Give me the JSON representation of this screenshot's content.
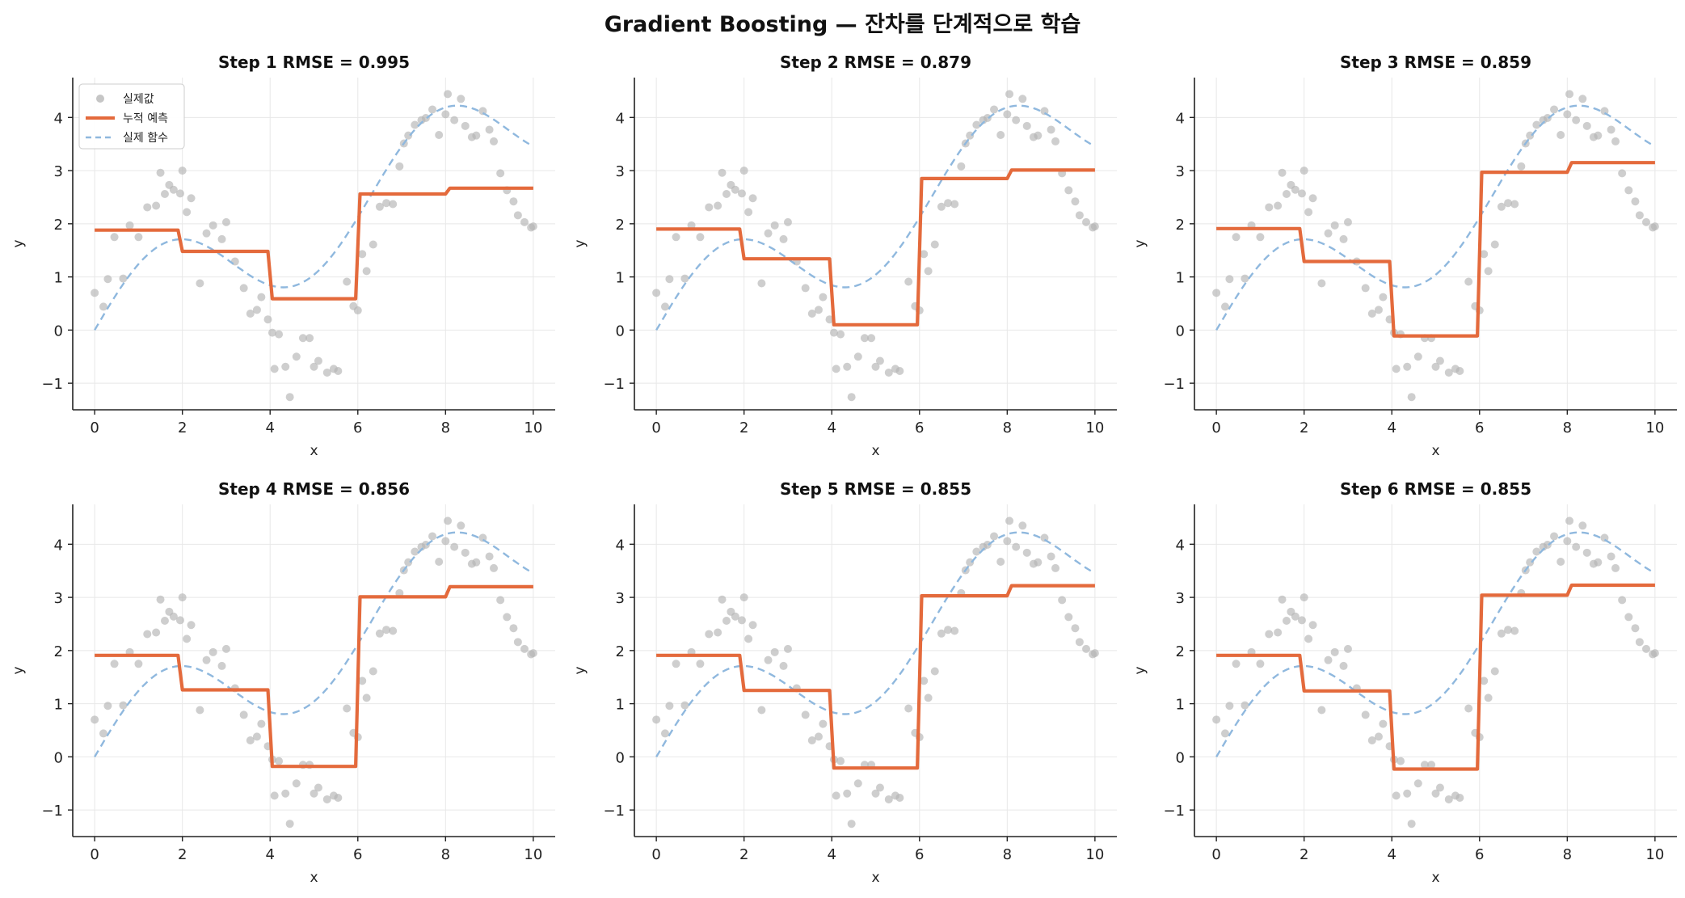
{
  "figure": {
    "title": "Gradient Boosting — 잔차를 단계적으로 학습"
  },
  "colors": {
    "actual_points": "#b3b3b3",
    "prediction": "#e46a3c",
    "true_function": "#8fb8de",
    "grid": "#e8e8e8",
    "axis": "#222222"
  },
  "chart_data": [
    {
      "type": "line",
      "title": "Step 1   RMSE = 0.995",
      "xlabel": "x",
      "ylabel": "y",
      "xlim": [
        -0.5,
        10.5
      ],
      "ylim": [
        -1.5,
        4.75
      ],
      "xticks": [
        0,
        2,
        4,
        6,
        8,
        10
      ],
      "xtick_labels": [
        "0",
        "2",
        "4",
        "6",
        "8",
        "10"
      ],
      "yticks": [
        -1,
        0,
        1,
        2,
        3,
        4
      ],
      "ytick_labels": [
        "−1",
        "0",
        "1",
        "2",
        "3",
        "4"
      ],
      "grid": true,
      "legend": {
        "placement": "top-left",
        "entries": [
          "실제값",
          "누적 예측",
          "실제 함수"
        ]
      },
      "series": [
        {
          "name": "누적 예측",
          "kind": "step",
          "x": [
            0,
            1.9,
            2.0,
            3.95,
            4.05,
            5.95,
            6.05,
            8.0,
            8.1,
            10
          ],
          "y": [
            1.88,
            1.88,
            1.48,
            1.48,
            0.59,
            0.59,
            2.56,
            2.56,
            2.67,
            2.67
          ]
        }
      ]
    },
    {
      "type": "line",
      "title": "Step 2   RMSE = 0.879",
      "xlabel": "x",
      "ylabel": "y",
      "xlim": [
        -0.5,
        10.5
      ],
      "ylim": [
        -1.5,
        4.75
      ],
      "xticks": [
        0,
        2,
        4,
        6,
        8,
        10
      ],
      "xtick_labels": [
        "0",
        "2",
        "4",
        "6",
        "8",
        "10"
      ],
      "yticks": [
        -1,
        0,
        1,
        2,
        3,
        4
      ],
      "ytick_labels": [
        "−1",
        "0",
        "1",
        "2",
        "3",
        "4"
      ],
      "grid": true,
      "series": [
        {
          "name": "누적 예측",
          "kind": "step",
          "x": [
            0,
            1.9,
            2.0,
            3.95,
            4.05,
            5.95,
            6.05,
            8.0,
            8.1,
            10
          ],
          "y": [
            1.9,
            1.9,
            1.34,
            1.34,
            0.1,
            0.1,
            2.85,
            2.85,
            3.01,
            3.01
          ]
        }
      ]
    },
    {
      "type": "line",
      "title": "Step 3   RMSE = 0.859",
      "xlabel": "x",
      "ylabel": "y",
      "xlim": [
        -0.5,
        10.5
      ],
      "ylim": [
        -1.5,
        4.75
      ],
      "xticks": [
        0,
        2,
        4,
        6,
        8,
        10
      ],
      "xtick_labels": [
        "0",
        "2",
        "4",
        "6",
        "8",
        "10"
      ],
      "yticks": [
        -1,
        0,
        1,
        2,
        3,
        4
      ],
      "ytick_labels": [
        "−1",
        "0",
        "1",
        "2",
        "3",
        "4"
      ],
      "grid": true,
      "series": [
        {
          "name": "누적 예측",
          "kind": "step",
          "x": [
            0,
            1.9,
            2.0,
            3.95,
            4.05,
            5.95,
            6.05,
            8.0,
            8.1,
            10
          ],
          "y": [
            1.91,
            1.91,
            1.29,
            1.29,
            -0.11,
            -0.11,
            2.97,
            2.97,
            3.15,
            3.15
          ]
        }
      ]
    },
    {
      "type": "line",
      "title": "Step 4   RMSE = 0.856",
      "xlabel": "x",
      "ylabel": "y",
      "xlim": [
        -0.5,
        10.5
      ],
      "ylim": [
        -1.5,
        4.75
      ],
      "xticks": [
        0,
        2,
        4,
        6,
        8,
        10
      ],
      "xtick_labels": [
        "0",
        "2",
        "4",
        "6",
        "8",
        "10"
      ],
      "yticks": [
        -1,
        0,
        1,
        2,
        3,
        4
      ],
      "ytick_labels": [
        "−1",
        "0",
        "1",
        "2",
        "3",
        "4"
      ],
      "grid": true,
      "series": [
        {
          "name": "누적 예측",
          "kind": "step",
          "x": [
            0,
            1.9,
            2.0,
            3.95,
            4.05,
            5.95,
            6.05,
            8.0,
            8.1,
            10
          ],
          "y": [
            1.91,
            1.91,
            1.26,
            1.26,
            -0.18,
            -0.18,
            3.01,
            3.01,
            3.2,
            3.2
          ]
        }
      ]
    },
    {
      "type": "line",
      "title": "Step 5   RMSE = 0.855",
      "xlabel": "x",
      "ylabel": "y",
      "xlim": [
        -0.5,
        10.5
      ],
      "ylim": [
        -1.5,
        4.75
      ],
      "xticks": [
        0,
        2,
        4,
        6,
        8,
        10
      ],
      "xtick_labels": [
        "0",
        "2",
        "4",
        "6",
        "8",
        "10"
      ],
      "yticks": [
        -1,
        0,
        1,
        2,
        3,
        4
      ],
      "ytick_labels": [
        "−1",
        "0",
        "1",
        "2",
        "3",
        "4"
      ],
      "grid": true,
      "series": [
        {
          "name": "누적 예측",
          "kind": "step",
          "x": [
            0,
            1.9,
            2.0,
            3.95,
            4.05,
            5.95,
            6.05,
            8.0,
            8.1,
            10
          ],
          "y": [
            1.91,
            1.91,
            1.25,
            1.25,
            -0.21,
            -0.21,
            3.03,
            3.03,
            3.22,
            3.22
          ]
        }
      ]
    },
    {
      "type": "line",
      "title": "Step 6   RMSE = 0.855",
      "xlabel": "x",
      "ylabel": "y",
      "xlim": [
        -0.5,
        10.5
      ],
      "ylim": [
        -1.5,
        4.75
      ],
      "xticks": [
        0,
        2,
        4,
        6,
        8,
        10
      ],
      "xtick_labels": [
        "0",
        "2",
        "4",
        "6",
        "8",
        "10"
      ],
      "yticks": [
        -1,
        0,
        1,
        2,
        3,
        4
      ],
      "ytick_labels": [
        "−1",
        "0",
        "1",
        "2",
        "3",
        "4"
      ],
      "grid": true,
      "series": [
        {
          "name": "누적 예측",
          "kind": "step",
          "x": [
            0,
            1.9,
            2.0,
            3.95,
            4.05,
            5.95,
            6.05,
            8.0,
            8.1,
            10
          ],
          "y": [
            1.91,
            1.91,
            1.24,
            1.24,
            -0.23,
            -0.23,
            3.04,
            3.04,
            3.23,
            3.23
          ]
        }
      ]
    }
  ],
  "shared_series": {
    "actual_points": {
      "name": "실제값",
      "x": [
        0.0,
        0.2,
        0.3,
        0.45,
        0.65,
        0.8,
        1.0,
        1.2,
        1.4,
        1.5,
        1.6,
        1.7,
        1.8,
        1.95,
        2.0,
        2.1,
        2.2,
        2.4,
        2.55,
        2.7,
        2.9,
        3.0,
        3.2,
        3.4,
        3.55,
        3.7,
        3.8,
        3.95,
        4.05,
        4.1,
        4.2,
        4.35,
        4.45,
        4.6,
        4.75,
        4.9,
        5.0,
        5.1,
        5.3,
        5.45,
        5.55,
        5.75,
        5.9,
        6.0,
        6.1,
        6.2,
        6.35,
        6.5,
        6.65,
        6.8,
        6.95,
        7.05,
        7.15,
        7.3,
        7.45,
        7.55,
        7.7,
        7.85,
        8.0,
        8.05,
        8.2,
        8.35,
        8.45,
        8.6,
        8.7,
        8.85,
        9.0,
        9.1,
        9.25,
        9.4,
        9.55,
        9.65,
        9.8,
        9.95,
        10.0
      ],
      "y": [
        0.7,
        0.44,
        0.96,
        1.75,
        0.97,
        1.97,
        1.75,
        2.31,
        2.34,
        2.96,
        2.56,
        2.73,
        2.64,
        2.57,
        3.0,
        2.22,
        2.48,
        0.88,
        1.82,
        1.97,
        1.71,
        2.03,
        1.29,
        0.79,
        0.31,
        0.38,
        0.62,
        0.2,
        -0.05,
        -0.73,
        -0.08,
        -0.69,
        -1.26,
        -0.5,
        -0.15,
        -0.15,
        -0.69,
        -0.58,
        -0.8,
        -0.73,
        -0.77,
        0.91,
        0.45,
        0.37,
        1.43,
        1.11,
        1.61,
        2.32,
        2.39,
        2.37,
        3.08,
        3.51,
        3.66,
        3.86,
        3.95,
        3.99,
        4.15,
        3.67,
        4.06,
        4.44,
        3.95,
        4.35,
        3.84,
        3.63,
        3.66,
        4.12,
        3.77,
        3.55,
        2.95,
        2.63,
        2.42,
        2.16,
        2.03,
        1.93,
        1.95
      ]
    },
    "true_function": {
      "name": "실제 함수",
      "formula": "sin(x) + 0.4x",
      "x_range": [
        0,
        10
      ]
    }
  }
}
